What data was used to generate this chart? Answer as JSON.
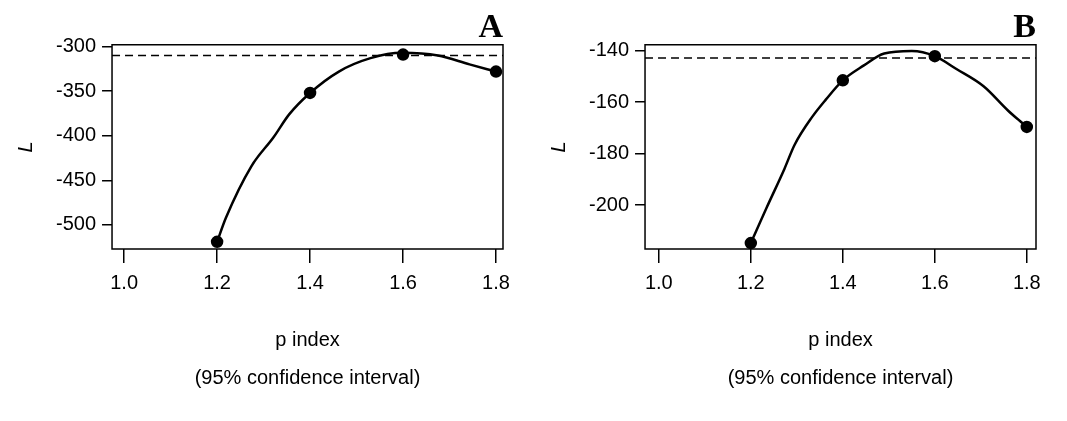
{
  "chart_data": [
    {
      "type": "scatter",
      "title": "A",
      "xlabel": "p index\n(95% confidence interval)",
      "ylabel": "L",
      "marker": "circle",
      "grid": false,
      "legend": false,
      "xlim": [
        0.974,
        1.815
      ],
      "xticks": [
        {
          "value": 1,
          "label": "1.0"
        },
        1.2,
        1.4,
        1.6,
        1.8
      ],
      "ylim": [
        -527,
        -298
      ],
      "yticks": [
        -500,
        -450,
        -400,
        -350,
        -300
      ],
      "series": [
        {
          "type": "line",
          "color": "#000000",
          "marker": "none",
          "x": [
            1.2,
            1.219,
            1.274,
            1.321,
            1.355,
            1.4,
            1.462,
            1.53,
            1.598,
            1.675,
            1.743,
            1.8
          ],
          "values": [
            -519,
            -492,
            -434,
            -402,
            -376,
            -352,
            -328,
            -313,
            -307,
            -310,
            -320,
            -328
          ]
        },
        {
          "type": "scatter",
          "color": "#000000",
          "x": [
            1.2,
            1.4,
            1.6,
            1.8
          ],
          "values": [
            -519,
            -352,
            -309,
            -328
          ]
        }
      ],
      "ref_lines": [
        {
          "axis": "y",
          "value": -310,
          "color": "#000000",
          "line_style": "dashed"
        }
      ]
    },
    {
      "type": "scatter",
      "title": "B",
      "xlabel": "p index\n(95% confidence interval)",
      "ylabel": "L",
      "marker": "circle",
      "grid": false,
      "legend": false,
      "xlim": [
        0.97,
        1.82
      ],
      "xticks": [
        {
          "value": 1,
          "label": "1.0"
        },
        1.2,
        1.4,
        1.6,
        1.8
      ],
      "ylim": [
        -217,
        -137.7
      ],
      "yticks": [
        -200,
        -180,
        -160,
        -140
      ],
      "series": [
        {
          "type": "line",
          "color": "#000000",
          "marker": "none",
          "x": [
            1.2,
            1.235,
            1.273,
            1.295,
            1.333,
            1.363,
            1.4,
            1.445,
            1.49,
            1.55,
            1.6,
            1.647,
            1.706,
            1.759,
            1.8
          ],
          "values": [
            -214.7,
            -200.7,
            -185.9,
            -176.6,
            -165.8,
            -159,
            -151.5,
            -145.8,
            -141.1,
            -140.1,
            -142.1,
            -147.1,
            -153.8,
            -163.2,
            -169.6
          ]
        },
        {
          "type": "scatter",
          "color": "#000000",
          "x": [
            1.2,
            1.4,
            1.6,
            1.8
          ],
          "values": [
            -214.7,
            -151.5,
            -142.1,
            -169.6
          ]
        }
      ],
      "ref_lines": [
        {
          "axis": "y",
          "value": -142.8,
          "color": "#000000",
          "line_style": "dashed"
        }
      ]
    }
  ]
}
